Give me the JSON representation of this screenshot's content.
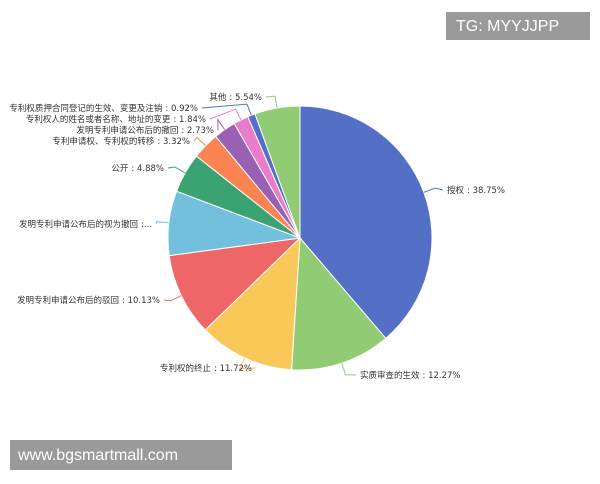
{
  "chart_data": {
    "type": "pie",
    "categories": [
      "授权",
      "实质审查的生效",
      "专利权的终止",
      "发明专利申请公布后的驳回",
      "发明专利申请公布后的视为撤回",
      "公开",
      "专利申请权、专利权的转移",
      "发明专利申请公布后的撤回",
      "专利权人的姓名或者名称、地址的变更",
      "专利权质押合同登记的生效、变更及注销",
      "其他"
    ],
    "values": [
      38.75,
      12.27,
      11.72,
      10.13,
      7.9,
      4.88,
      3.32,
      2.73,
      1.84,
      0.92,
      5.54
    ],
    "value_labels": [
      ": 38.75%",
      ": 12.27%",
      ": 11.72%",
      ": 10.13%",
      ":...",
      ": 4.88%",
      ": 3.32%",
      ": 2.73%",
      ": 1.84%",
      ": 0.92%",
      ": 5.54%"
    ],
    "colors": [
      "#5470c6",
      "#91cc75",
      "#fac858",
      "#ee6666",
      "#73c0de",
      "#3ba272",
      "#fc8452",
      "#9a60b4",
      "#ea7ccc",
      "#5470c6",
      "#91cc75"
    ]
  },
  "watermarks": [
    "TG: MYYJJPP",
    "www.bgsmartmall.com"
  ]
}
